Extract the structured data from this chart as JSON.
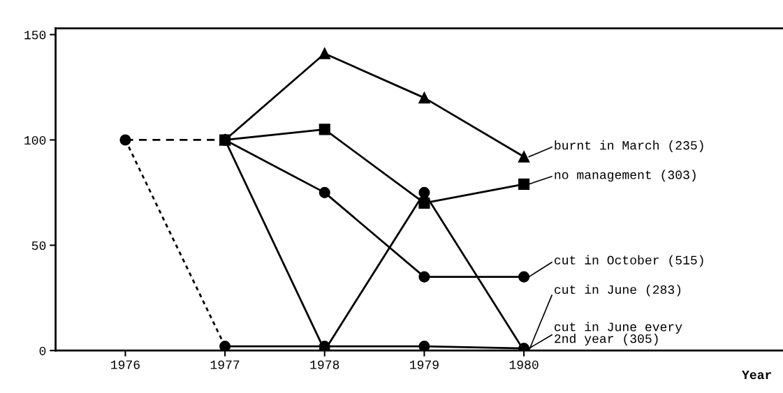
{
  "chart_data": {
    "type": "line",
    "xlabel": "Year",
    "xlim": [
      1975.3,
      1982.6
    ],
    "xticks": [
      1976,
      1977,
      1978,
      1979,
      1980
    ],
    "ylim": [
      0,
      153
    ],
    "yticks": [
      0,
      50,
      100,
      150
    ],
    "grid": false,
    "legend": "right",
    "line_style": "solid",
    "series": [
      {
        "name": "burnt in March (235)",
        "color": "#000000",
        "marker": "triangle",
        "x": [
          1977,
          1978,
          1979,
          1980
        ],
        "values": [
          100,
          141,
          120,
          92
        ]
      },
      {
        "name": "no management (303)",
        "color": "#000000",
        "marker": "square",
        "x": [
          1977,
          1978,
          1979,
          1980
        ],
        "values": [
          100,
          105,
          70,
          79
        ]
      },
      {
        "name": "cut in October (515)",
        "color": "#000000",
        "marker": "circle",
        "x": [
          1977,
          1978,
          1979,
          1980
        ],
        "values": [
          100,
          75,
          35,
          35
        ]
      },
      {
        "name": "cut in June (283)",
        "color": "#000000",
        "marker": "circle",
        "x": [
          1977,
          1978,
          1979,
          1980
        ],
        "values": [
          100,
          0,
          75,
          0
        ]
      },
      {
        "name": "cut in June every\n2nd year (305)",
        "color": "#000000",
        "marker": "circle",
        "x": [
          1977,
          1978,
          1979,
          1980
        ],
        "values": [
          2,
          2,
          2,
          1
        ]
      },
      {
        "color": "#000000",
        "marker": "circle",
        "line_style": "dashed",
        "x": [
          1976,
          1977
        ],
        "values": [
          100,
          100
        ]
      },
      {
        "color": "#000000",
        "marker": "none",
        "line_style": "dotted",
        "x": [
          1976,
          1977
        ],
        "values": [
          100,
          2
        ]
      }
    ]
  }
}
